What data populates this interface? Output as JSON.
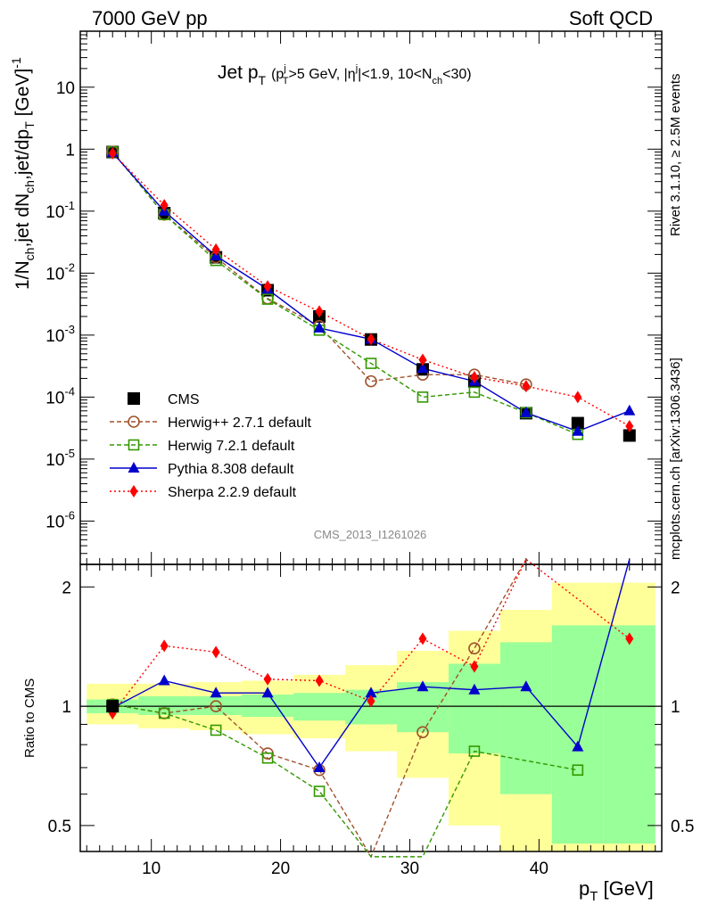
{
  "header": {
    "left": "7000 GeV pp",
    "right": "Soft QCD"
  },
  "side": {
    "rivet": "Rivet 3.1.10, ≥ 2.5M events",
    "mcplots": "mcplots.cern.ch [arXiv:1306.3436]"
  },
  "watermark": "CMS_2013_I1261026",
  "chart_data": {
    "type": "scatter",
    "title": "Jet pT (pTj>5 GeV, |ηj|<1.9, 10<Nch<30)",
    "title_parts": {
      "main": "Jet p",
      "main_sub": "T",
      "cut_open": "(p",
      "cut_sup": "j",
      "cut_sub": "T",
      "cut_mid": ">5 GeV, |η",
      "cut_sup2": "j",
      "cut_mid2": "|<1.9, 10<N",
      "cut_sub2": "ch",
      "cut_end": "<30)"
    },
    "xlabel": "p_T [GeV]",
    "xlabel_parts": {
      "main": "p",
      "sub": "T",
      "unit": " [GeV]"
    },
    "ylabel": "1/N_ch,jet dN_ch,jet/dp_T [GeV]^-1",
    "ylabel_parts": {
      "a": "1/N",
      "a_sub": "ch",
      "b": ",jet dN",
      "b_sub": "ch",
      "c": ",jet/dp",
      "c_sub": "T",
      "d": " [GeV]",
      "d_sup": "-1"
    },
    "ratio_ylabel": "Ratio to CMS",
    "xlim": [
      4.5,
      49.5
    ],
    "ylim": [
      2e-07,
      80
    ],
    "yscale": "log",
    "ratio_ylim": [
      0.43,
      2.28
    ],
    "ratio_yscale": "log",
    "x_ticks": [
      "10",
      "20",
      "30",
      "40"
    ],
    "y_ticks": [
      "10^-6",
      "10^-5",
      "10^-4",
      "10^-3",
      "10^-2",
      "10^-1",
      "1",
      "10"
    ],
    "ratio_ticks": [
      "0.5",
      "1",
      "2"
    ],
    "legend_position": "lower-left",
    "x": [
      7,
      11,
      15,
      19,
      23,
      27,
      31,
      35,
      39,
      43,
      47
    ],
    "series": [
      {
        "name": "CMS",
        "color": "#000000",
        "marker": "square-filled",
        "values": [
          0.9,
          0.093,
          0.018,
          0.0053,
          0.002,
          0.00085,
          0.00028,
          0.00018,
          5.5e-05,
          3.8e-05,
          2.4e-05
        ]
      },
      {
        "name": "Herwig++ 2.7.1 default",
        "color": "#a0522d",
        "marker": "circle-open",
        "dash": "5,3",
        "values": [
          0.91,
          0.088,
          0.018,
          0.0039,
          0.0014,
          0.00018,
          0.00023,
          0.00023,
          0.00016,
          null,
          null
        ]
      },
      {
        "name": "Herwig 7.2.1 default",
        "color": "#339900",
        "marker": "square-open",
        "dash": "5,3",
        "values": [
          0.91,
          0.088,
          0.016,
          0.0038,
          0.0012,
          0.00035,
          0.0001,
          0.00012,
          5.6e-05,
          2.5e-05,
          null
        ]
      },
      {
        "name": "Pythia 8.308 default",
        "color": "#0000cc",
        "marker": "triangle-filled",
        "values": [
          0.88,
          0.1,
          0.019,
          0.0055,
          0.0013,
          0.00086,
          0.00029,
          0.00018,
          5.6e-05,
          2.8e-05,
          6e-05
        ]
      },
      {
        "name": "Sherpa 2.2.9 default",
        "color": "#ff0000",
        "marker": "diamond-filled",
        "dash": "2,3",
        "values": [
          0.86,
          0.125,
          0.024,
          0.0061,
          0.0024,
          0.00086,
          0.0004,
          0.00021,
          0.00015,
          0.0001,
          3.4e-05
        ]
      }
    ],
    "ratio_series": [
      {
        "name": "Herwig++ 2.7.1 default",
        "values": [
          1.01,
          0.96,
          1.0,
          0.76,
          0.69,
          0.3,
          0.86,
          1.4,
          3.0,
          null,
          null
        ]
      },
      {
        "name": "Herwig 7.2.1 default",
        "values": [
          1.01,
          0.96,
          0.87,
          0.74,
          0.61,
          0.37,
          0.2,
          0.77,
          null,
          0.69,
          null
        ]
      },
      {
        "name": "Pythia 8.308 default",
        "values": [
          0.99,
          1.16,
          1.08,
          1.08,
          0.7,
          1.08,
          1.12,
          1.1,
          1.12,
          0.79,
          2.5
        ]
      },
      {
        "name": "Sherpa 2.2.9 default",
        "values": [
          0.96,
          1.42,
          1.37,
          1.17,
          1.16,
          1.03,
          1.48,
          1.26,
          3.0,
          null,
          1.48
        ]
      }
    ],
    "bands": {
      "edges": [
        5,
        9,
        13,
        17,
        21,
        25,
        29,
        33,
        37,
        41,
        45,
        49
      ],
      "green": [
        [
          0.96,
          1.04
        ],
        [
          0.95,
          1.06
        ],
        [
          0.95,
          1.06
        ],
        [
          0.94,
          1.07
        ],
        [
          0.92,
          1.08
        ],
        [
          0.9,
          1.1
        ],
        [
          0.86,
          1.15
        ],
        [
          0.76,
          1.28
        ],
        [
          0.6,
          1.45
        ],
        [
          0.45,
          1.6
        ],
        [
          0.45,
          1.6
        ]
      ],
      "yellow": [
        [
          0.9,
          1.14
        ],
        [
          0.88,
          1.14
        ],
        [
          0.87,
          1.15
        ],
        [
          0.85,
          1.16
        ],
        [
          0.83,
          1.2
        ],
        [
          0.77,
          1.27
        ],
        [
          0.66,
          1.38
        ],
        [
          0.5,
          1.55
        ],
        [
          0.43,
          1.75
        ],
        [
          0.43,
          2.05
        ],
        [
          0.43,
          2.05
        ]
      ],
      "green_color": "#99ff99",
      "yellow_color": "#ffff99"
    }
  }
}
